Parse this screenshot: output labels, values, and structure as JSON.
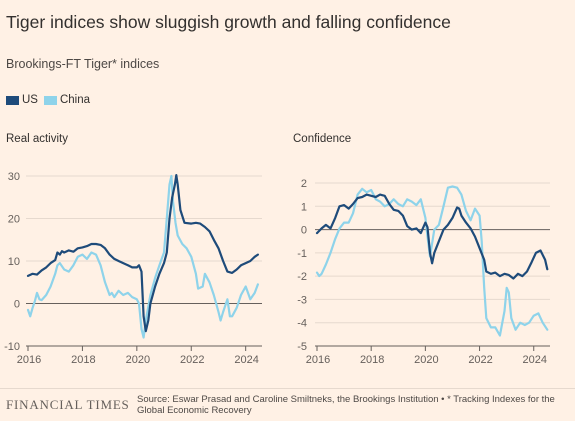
{
  "header": {
    "title": "Tiger indices show sluggish growth and falling confidence",
    "subtitle": "Brookings-FT Tiger* indices"
  },
  "legend": [
    {
      "name": "US",
      "color": "#1e4b7a"
    },
    {
      "name": "China",
      "color": "#8ed3ea"
    }
  ],
  "footer": {
    "logo": "FINANCIAL TIMES",
    "source": "Source: Eswar Prasad and Caroline Smiltneks, the Brookings Institution • * Tracking Indexes for the Global Economic Recovery"
  },
  "chart_data": [
    {
      "type": "line",
      "title": "Real activity",
      "xlabel": "",
      "ylabel": "",
      "xlim": [
        2016,
        2024.6
      ],
      "ylim": [
        -10,
        30
      ],
      "yticks": [
        -10,
        0,
        10,
        20,
        30
      ],
      "xticks": [
        2016,
        2018,
        2020,
        2022,
        2024
      ],
      "grid": true,
      "series": [
        {
          "name": "US",
          "color": "#1e4b7a",
          "points": [
            [
              2016.0,
              6.5
            ],
            [
              2016.17,
              7.0
            ],
            [
              2016.33,
              6.8
            ],
            [
              2016.5,
              7.8
            ],
            [
              2016.67,
              8.5
            ],
            [
              2016.83,
              9.5
            ],
            [
              2017.0,
              10.2
            ],
            [
              2017.08,
              12.0
            ],
            [
              2017.17,
              11.5
            ],
            [
              2017.25,
              12.3
            ],
            [
              2017.33,
              12.0
            ],
            [
              2017.5,
              12.5
            ],
            [
              2017.67,
              12.2
            ],
            [
              2017.83,
              13.0
            ],
            [
              2018.0,
              13.2
            ],
            [
              2018.17,
              13.5
            ],
            [
              2018.33,
              14.0
            ],
            [
              2018.5,
              14.0
            ],
            [
              2018.67,
              13.8
            ],
            [
              2018.83,
              13.0
            ],
            [
              2019.0,
              11.5
            ],
            [
              2019.17,
              10.5
            ],
            [
              2019.33,
              10.0
            ],
            [
              2019.5,
              9.5
            ],
            [
              2019.67,
              9.0
            ],
            [
              2019.83,
              8.5
            ],
            [
              2020.0,
              8.5
            ],
            [
              2020.08,
              9.0
            ],
            [
              2020.17,
              7.5
            ],
            [
              2020.25,
              -3.0
            ],
            [
              2020.33,
              -6.5
            ],
            [
              2020.42,
              -4.0
            ],
            [
              2020.5,
              0.0
            ],
            [
              2020.67,
              4.0
            ],
            [
              2020.83,
              7.0
            ],
            [
              2021.0,
              9.5
            ],
            [
              2021.1,
              12.0
            ],
            [
              2021.2,
              20.0
            ],
            [
              2021.3,
              25.0
            ],
            [
              2021.4,
              28.0
            ],
            [
              2021.45,
              30.2
            ],
            [
              2021.5,
              28.0
            ],
            [
              2021.6,
              22.0
            ],
            [
              2021.75,
              19.0
            ],
            [
              2022.0,
              18.8
            ],
            [
              2022.17,
              19.0
            ],
            [
              2022.33,
              18.8
            ],
            [
              2022.5,
              18.0
            ],
            [
              2022.67,
              17.0
            ],
            [
              2022.83,
              15.0
            ],
            [
              2023.0,
              13.0
            ],
            [
              2023.17,
              10.0
            ],
            [
              2023.33,
              7.5
            ],
            [
              2023.5,
              7.2
            ],
            [
              2023.67,
              8.0
            ],
            [
              2023.83,
              9.0
            ],
            [
              2024.0,
              9.5
            ],
            [
              2024.17,
              10.0
            ],
            [
              2024.33,
              11.0
            ],
            [
              2024.45,
              11.5
            ]
          ]
        },
        {
          "name": "China",
          "color": "#8ed3ea",
          "points": [
            [
              2016.0,
              -1.5
            ],
            [
              2016.08,
              -3.0
            ],
            [
              2016.17,
              -1.0
            ],
            [
              2016.25,
              0.5
            ],
            [
              2016.33,
              2.5
            ],
            [
              2016.42,
              1.0
            ],
            [
              2016.5,
              0.8
            ],
            [
              2016.67,
              2.0
            ],
            [
              2016.83,
              4.0
            ],
            [
              2017.0,
              7.0
            ],
            [
              2017.08,
              9.0
            ],
            [
              2017.17,
              9.5
            ],
            [
              2017.33,
              8.0
            ],
            [
              2017.5,
              7.5
            ],
            [
              2017.67,
              9.0
            ],
            [
              2017.83,
              11.0
            ],
            [
              2018.0,
              11.5
            ],
            [
              2018.17,
              10.5
            ],
            [
              2018.33,
              12.0
            ],
            [
              2018.5,
              11.5
            ],
            [
              2018.67,
              9.0
            ],
            [
              2018.83,
              5.0
            ],
            [
              2019.0,
              2.0
            ],
            [
              2019.08,
              2.5
            ],
            [
              2019.17,
              1.5
            ],
            [
              2019.33,
              3.0
            ],
            [
              2019.5,
              2.0
            ],
            [
              2019.67,
              2.5
            ],
            [
              2019.83,
              1.5
            ],
            [
              2020.0,
              1.0
            ],
            [
              2020.08,
              0.0
            ],
            [
              2020.17,
              -6.0
            ],
            [
              2020.25,
              -8.0
            ],
            [
              2020.33,
              -4.0
            ],
            [
              2020.5,
              2.0
            ],
            [
              2020.67,
              6.0
            ],
            [
              2020.83,
              9.0
            ],
            [
              2021.0,
              12.0
            ],
            [
              2021.1,
              20.0
            ],
            [
              2021.2,
              28.0
            ],
            [
              2021.27,
              30.0
            ],
            [
              2021.33,
              24.0
            ],
            [
              2021.42,
              19.0
            ],
            [
              2021.5,
              16.0
            ],
            [
              2021.67,
              14.0
            ],
            [
              2021.83,
              13.0
            ],
            [
              2022.0,
              11.0
            ],
            [
              2022.17,
              7.0
            ],
            [
              2022.25,
              3.5
            ],
            [
              2022.42,
              4.0
            ],
            [
              2022.5,
              7.0
            ],
            [
              2022.67,
              5.0
            ],
            [
              2022.83,
              2.0
            ],
            [
              2023.0,
              -2.0
            ],
            [
              2023.08,
              -4.0
            ],
            [
              2023.17,
              -2.0
            ],
            [
              2023.33,
              1.0
            ],
            [
              2023.42,
              -3.0
            ],
            [
              2023.5,
              -3.0
            ],
            [
              2023.67,
              -1.0
            ],
            [
              2023.83,
              2.0
            ],
            [
              2024.0,
              4.0
            ],
            [
              2024.17,
              1.0
            ],
            [
              2024.33,
              2.5
            ],
            [
              2024.45,
              4.5
            ]
          ]
        }
      ]
    },
    {
      "type": "line",
      "title": "Confidence",
      "xlabel": "",
      "ylabel": "",
      "xlim": [
        2016,
        2024.6
      ],
      "ylim": [
        -5,
        2
      ],
      "yticks": [
        -5,
        -4,
        -3,
        -2,
        -1,
        0,
        1,
        2
      ],
      "xticks": [
        2016,
        2018,
        2020,
        2022,
        2024
      ],
      "grid": true,
      "series": [
        {
          "name": "US",
          "color": "#1e4b7a",
          "points": [
            [
              2016.0,
              -0.15
            ],
            [
              2016.17,
              0.05
            ],
            [
              2016.33,
              0.2
            ],
            [
              2016.5,
              0.05
            ],
            [
              2016.67,
              0.5
            ],
            [
              2016.83,
              1.0
            ],
            [
              2017.0,
              1.05
            ],
            [
              2017.17,
              0.9
            ],
            [
              2017.33,
              1.1
            ],
            [
              2017.5,
              1.35
            ],
            [
              2017.67,
              1.4
            ],
            [
              2017.83,
              1.5
            ],
            [
              2018.0,
              1.45
            ],
            [
              2018.17,
              1.4
            ],
            [
              2018.33,
              1.5
            ],
            [
              2018.5,
              1.45
            ],
            [
              2018.67,
              1.1
            ],
            [
              2018.83,
              0.85
            ],
            [
              2019.0,
              0.8
            ],
            [
              2019.17,
              0.6
            ],
            [
              2019.33,
              0.15
            ],
            [
              2019.5,
              0.0
            ],
            [
              2019.67,
              0.05
            ],
            [
              2019.83,
              -0.15
            ],
            [
              2020.0,
              0.3
            ],
            [
              2020.08,
              0.1
            ],
            [
              2020.17,
              -1.0
            ],
            [
              2020.25,
              -1.45
            ],
            [
              2020.33,
              -1.0
            ],
            [
              2020.5,
              -0.5
            ],
            [
              2020.67,
              0.0
            ],
            [
              2020.83,
              0.2
            ],
            [
              2021.0,
              0.5
            ],
            [
              2021.17,
              0.95
            ],
            [
              2021.25,
              0.9
            ],
            [
              2021.33,
              0.6
            ],
            [
              2021.5,
              0.3
            ],
            [
              2021.67,
              0.05
            ],
            [
              2021.83,
              -0.3
            ],
            [
              2022.0,
              -0.8
            ],
            [
              2022.17,
              -1.3
            ],
            [
              2022.25,
              -1.8
            ],
            [
              2022.42,
              -1.9
            ],
            [
              2022.58,
              -1.85
            ],
            [
              2022.75,
              -2.0
            ],
            [
              2022.92,
              -1.9
            ],
            [
              2023.08,
              -1.95
            ],
            [
              2023.25,
              -2.1
            ],
            [
              2023.42,
              -1.9
            ],
            [
              2023.58,
              -2.0
            ],
            [
              2023.75,
              -1.8
            ],
            [
              2023.92,
              -1.4
            ],
            [
              2024.08,
              -1.0
            ],
            [
              2024.25,
              -0.9
            ],
            [
              2024.42,
              -1.3
            ],
            [
              2024.5,
              -1.7
            ]
          ]
        },
        {
          "name": "China",
          "color": "#8ed3ea",
          "points": [
            [
              2016.0,
              -1.85
            ],
            [
              2016.08,
              -2.0
            ],
            [
              2016.17,
              -1.9
            ],
            [
              2016.33,
              -1.5
            ],
            [
              2016.5,
              -1.0
            ],
            [
              2016.67,
              -0.4
            ],
            [
              2016.83,
              0.05
            ],
            [
              2017.0,
              0.3
            ],
            [
              2017.17,
              0.3
            ],
            [
              2017.33,
              0.7
            ],
            [
              2017.5,
              1.5
            ],
            [
              2017.67,
              1.75
            ],
            [
              2017.83,
              1.6
            ],
            [
              2018.0,
              1.7
            ],
            [
              2018.17,
              1.3
            ],
            [
              2018.33,
              1.2
            ],
            [
              2018.5,
              1.0
            ],
            [
              2018.67,
              1.1
            ],
            [
              2018.83,
              1.3
            ],
            [
              2019.0,
              1.1
            ],
            [
              2019.17,
              1.0
            ],
            [
              2019.33,
              1.3
            ],
            [
              2019.5,
              1.2
            ],
            [
              2019.67,
              1.05
            ],
            [
              2019.83,
              1.3
            ],
            [
              2020.0,
              0.5
            ],
            [
              2020.08,
              -0.3
            ],
            [
              2020.17,
              -1.15
            ],
            [
              2020.25,
              -0.6
            ],
            [
              2020.33,
              0.0
            ],
            [
              2020.5,
              0.2
            ],
            [
              2020.67,
              1.0
            ],
            [
              2020.83,
              1.8
            ],
            [
              2021.0,
              1.85
            ],
            [
              2021.17,
              1.8
            ],
            [
              2021.33,
              1.5
            ],
            [
              2021.5,
              0.8
            ],
            [
              2021.67,
              0.4
            ],
            [
              2021.83,
              0.9
            ],
            [
              2022.0,
              0.6
            ],
            [
              2022.08,
              -0.5
            ],
            [
              2022.17,
              -2.5
            ],
            [
              2022.25,
              -3.8
            ],
            [
              2022.42,
              -4.2
            ],
            [
              2022.58,
              -4.2
            ],
            [
              2022.75,
              -4.55
            ],
            [
              2022.92,
              -3.5
            ],
            [
              2023.0,
              -2.5
            ],
            [
              2023.08,
              -2.7
            ],
            [
              2023.17,
              -3.8
            ],
            [
              2023.33,
              -4.3
            ],
            [
              2023.5,
              -4.0
            ],
            [
              2023.67,
              -4.1
            ],
            [
              2023.83,
              -4.0
            ],
            [
              2024.0,
              -3.7
            ],
            [
              2024.17,
              -3.6
            ],
            [
              2024.33,
              -4.0
            ],
            [
              2024.5,
              -4.3
            ]
          ]
        }
      ]
    }
  ]
}
